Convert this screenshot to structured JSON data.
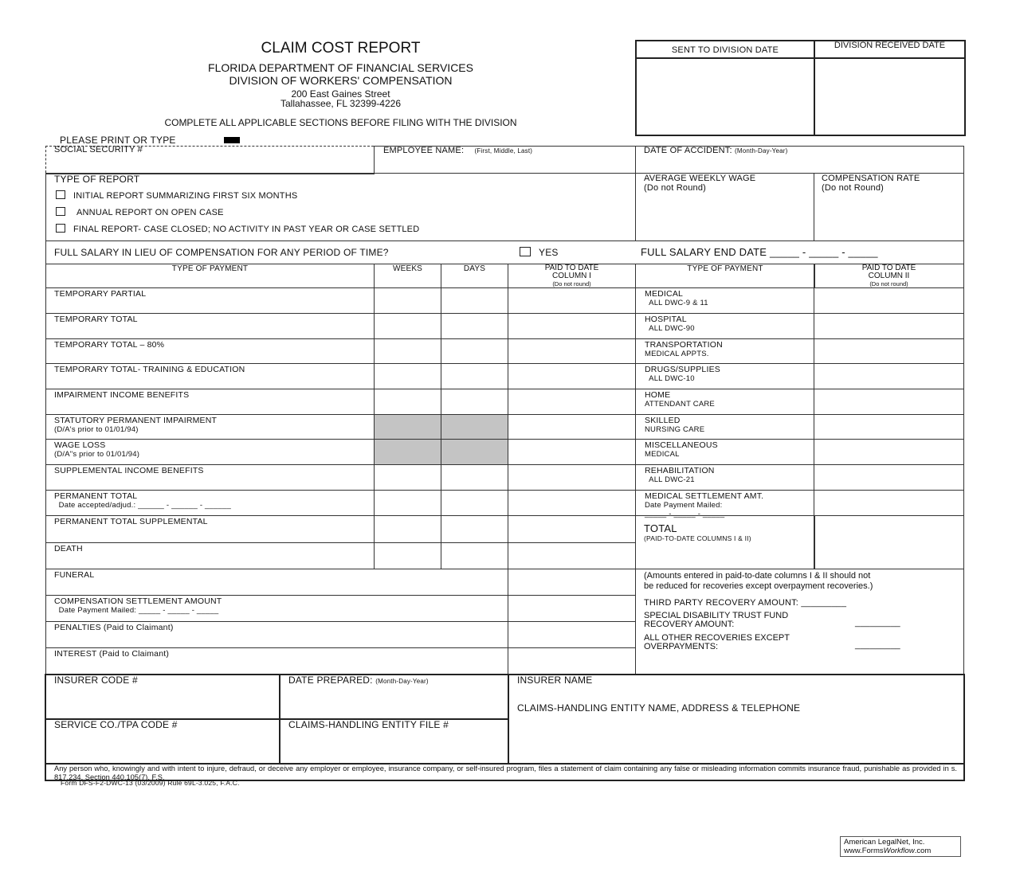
{
  "header": {
    "title": "CLAIM COST REPORT",
    "department": "FLORIDA DEPARTMENT OF FINANCIAL SERVICES",
    "division": "DIVISION OF WORKERS' COMPENSATION",
    "address_line1": "200 East Gaines Street",
    "address_line2": "Tallahassee, FL 32399-4226",
    "instruction": "COMPLETE ALL APPLICABLE SECTIONS BEFORE FILING WITH THE DIVISION",
    "print_label": "PLEASE PRINT OR TYPE"
  },
  "division_box": {
    "sent_label": "SENT TO DIVISION DATE",
    "received_label": "DIVISION RECEIVED DATE"
  },
  "fields": {
    "ssn": "SOCIAL SECURITY #",
    "employee_name": "EMPLOYEE NAME:",
    "employee_name_hint": "(First, Middle, Last)",
    "date_of_accident": "DATE OF ACCIDENT:",
    "date_of_accident_hint": "(Month-Day-Year)",
    "type_of_report": "TYPE OF REPORT",
    "report_options": [
      "INITIAL REPORT SUMMARIZING FIRST SIX MONTHS",
      "ANNUAL REPORT ON OPEN CASE",
      "FINAL REPORT- CASE CLOSED; NO ACTIVITY IN PAST YEAR OR CASE SETTLED"
    ],
    "average_weekly_wage": "AVERAGE WEEKLY WAGE",
    "compensation_rate": "COMPENSATION RATE",
    "do_not_round": "(Do not Round)",
    "full_salary_question": "FULL SALARY IN LIEU OF COMPENSATION FOR ANY PERIOD OF TIME?",
    "yes_label": "YES",
    "full_salary_end_date": "FULL SALARY END DATE  _____ - _____ - _____"
  },
  "table": {
    "left_headers": [
      "TYPE OF PAYMENT",
      "WEEKS",
      "DAYS",
      "PAID TO DATE",
      "COLUMN I",
      "(Do not round)"
    ],
    "right_headers": [
      "TYPE OF PAYMENT",
      "PAID TO DATE",
      "COLUMN II",
      "(Do not round)"
    ],
    "left_rows": [
      {
        "label": "TEMPORARY PARTIAL",
        "sub": ""
      },
      {
        "label": "TEMPORARY TOTAL",
        "sub": ""
      },
      {
        "label": "TEMPORARY TOTAL – 80%",
        "sub": ""
      },
      {
        "label": "TEMPORARY TOTAL- TRAINING & EDUCATION",
        "sub": ""
      },
      {
        "label": "IMPAIRMENT INCOME BENEFITS",
        "sub": ""
      },
      {
        "label": "STATUTORY PERMANENT IMPAIRMENT",
        "sub": "(D/A's prior to 01/01/94)"
      },
      {
        "label": "WAGE LOSS",
        "sub": "(D/A\"s prior to 01/01/94)"
      },
      {
        "label": "SUPPLEMENTAL INCOME BENEFITS",
        "sub": ""
      },
      {
        "label": "PERMANENT TOTAL",
        "sub": "  Date accepted/adjud.: ______ - ______ - ______"
      },
      {
        "label": "PERMANENT TOTAL SUPPLEMENTAL",
        "sub": ""
      },
      {
        "label": "DEATH",
        "sub": ""
      },
      {
        "label": "FUNERAL",
        "sub": ""
      },
      {
        "label": "COMPENSATION SETTLEMENT AMOUNT",
        "sub": "  Date Payment Mailed: _____ - _____ - _____"
      },
      {
        "label": "PENALTIES (Paid to Claimant)",
        "sub": ""
      },
      {
        "label": "INTEREST (Paid to Claimant)",
        "sub": ""
      }
    ],
    "right_rows": [
      {
        "label": "MEDICAL",
        "sub": "  ALL DWC-9 & 11"
      },
      {
        "label": "HOSPITAL",
        "sub": "  ALL DWC-90"
      },
      {
        "label": "TRANSPORTATION",
        "sub": "MEDICAL APPTS."
      },
      {
        "label": "DRUGS/SUPPLIES",
        "sub": "  ALL DWC-10"
      },
      {
        "label": "HOME",
        "sub": "ATTENDANT CARE"
      },
      {
        "label": "SKILLED",
        "sub": "NURSING CARE"
      },
      {
        "label": "MISCELLANEOUS",
        "sub": "MEDICAL"
      },
      {
        "label": "REHABILITATION",
        "sub": "  ALL DWC-21"
      },
      {
        "label": "MEDICAL SETTLEMENT AMT.",
        "sub": "Date Payment Mailed:\n_____ - _____ - _____"
      }
    ],
    "total_label": "TOTAL",
    "total_sub": "(PAID-TO-DATE COLUMNS I & II)"
  },
  "recoveries": {
    "note": "(Amounts entered in paid-to-date columns I & II should not\nbe reduced for recoveries except overpayment recoveries.)",
    "third_party": "THIRD PARTY RECOVERY AMOUNT:  _________",
    "special_disability": "SPECIAL DISABILITY TRUST FUND\nRECOVERY AMOUNT:",
    "all_other": "ALL OTHER RECOVERIES EXCEPT\nOVERPAYMENTS:",
    "blank": "_________"
  },
  "bottom": {
    "insurer_code": "INSURER CODE #",
    "date_prepared": "DATE PREPARED:",
    "date_prepared_hint": "(Month-Day-Year)",
    "insurer_name": "INSURER NAME",
    "claims_entity": "CLAIMS-HANDLING ENTITY NAME, ADDRESS & TELEPHONE",
    "service_co": "SERVICE CO./TPA CODE #",
    "claims_file": "CLAIMS-HANDLING ENTITY FILE #"
  },
  "disclaimer": "Any person who, knowingly and with intent to injure, defraud, or deceive any employer or employee, insurance company, or self-insured program, files a statement of claim containing any false or misleading information commits insurance fraud, punishable as provided in s. 817.234.  Section 440.105(7), F.S.",
  "form_id": "Form DFS-F2-DWC-13 (03/2009) Rule 69L-3.025, F.A.C.",
  "publisher": {
    "line1": "American LegalNet, Inc.",
    "line2_prefix": "www.Forms",
    "line2_italic": "Workflow",
    "line2_suffix": ".com"
  }
}
